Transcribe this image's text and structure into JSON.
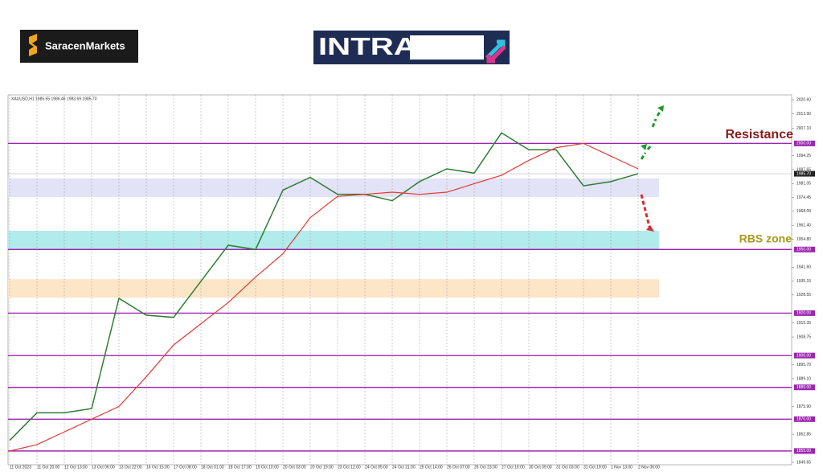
{
  "header": {
    "brand": "SaracenMarkets",
    "banner": "INTRADAY"
  },
  "chart_data": {
    "type": "line",
    "title": "XAUUSD,H1  1985.55 1986.46 1983.69 1985.70",
    "categories": [
      "11 Oct 2023",
      "11 Oct 20:00",
      "12 Oct 13:00",
      "13 Oct 06:00",
      "13 Oct 22:00",
      "16 Oct 15:00",
      "17 Oct 08:00",
      "18 Oct 01:00",
      "18 Oct 17:00",
      "19 Oct 10:00",
      "20 Oct 03:00",
      "20 Oct 19:00",
      "23 Oct 12:00",
      "24 Oct 05:00",
      "24 Oct 21:00",
      "25 Oct 14:00",
      "26 Oct 07:00",
      "26 Oct 23:00",
      "27 Oct 16:00",
      "30 Oct 09:00",
      "31 Oct 03:00",
      "31 Oct 19:00",
      "1 Nov 13:00",
      "2 Nov 06:00"
    ],
    "series": [
      {
        "color": "#2e7d32",
        "values": [
          1860,
          1873,
          1873,
          1875,
          1927,
          1919,
          1918,
          1935,
          1952,
          1950,
          1978,
          1984,
          1976,
          1976,
          1973,
          1982,
          1988,
          1986,
          2005,
          1997,
          1997,
          1980,
          1982,
          1985.7
        ]
      },
      {
        "color": "#e53935",
        "values": [
          1855,
          1858,
          1864,
          1870,
          1876,
          1890,
          1905,
          1915,
          1925,
          1937,
          1948,
          1965,
          1975,
          1976,
          1977,
          1976,
          1977,
          1981,
          1985,
          1992,
          1998,
          2000,
          1994,
          1988
        ]
      }
    ],
    "ylim": [
      1849.65,
      2020.6
    ],
    "yticks": [
      {
        "value": 2020.6,
        "label": "2020.60"
      },
      {
        "value": 2013.9,
        "label": "2013.90"
      },
      {
        "value": 2007.1,
        "label": "2007.10"
      },
      {
        "value": 1994.25,
        "label": "1994.25"
      },
      {
        "value": 1987.65,
        "label": "1987.65"
      },
      {
        "value": 1981.05,
        "label": "1981.05"
      },
      {
        "value": 1974.45,
        "label": "1974.45"
      },
      {
        "value": 1968,
        "label": "1968.00"
      },
      {
        "value": 1961.4,
        "label": "1961.40"
      },
      {
        "value": 1954.8,
        "label": "1954.80"
      },
      {
        "value": 1941.6,
        "label": "1941.60"
      },
      {
        "value": 1935.15,
        "label": "1935.15"
      },
      {
        "value": 1928.55,
        "label": "1928.55"
      },
      {
        "value": 1915.35,
        "label": "1915.35"
      },
      {
        "value": 1908.75,
        "label": "1908.75"
      },
      {
        "value": 1895.7,
        "label": "1895.70"
      },
      {
        "value": 1889.1,
        "label": "1889.10"
      },
      {
        "value": 1875.9,
        "label": "1875.90"
      },
      {
        "value": 1862.85,
        "label": "1862.85"
      },
      {
        "value": 1849.65,
        "label": "1849.65"
      }
    ],
    "levels": [
      {
        "value": 2000,
        "label": "2000.00"
      },
      {
        "value": 1950,
        "label": "1950.00"
      },
      {
        "value": 1920,
        "label": "1920.00"
      },
      {
        "value": 1900,
        "label": "1900.00"
      },
      {
        "value": 1885,
        "label": "1885.00"
      },
      {
        "value": 1870,
        "label": "1870.00"
      },
      {
        "value": 1855,
        "label": "1855.00"
      }
    ],
    "level_color": "#9c27b0",
    "zones": [
      {
        "range": [
          1974.7,
          1983.5
        ],
        "color": "#e3e3f7"
      },
      {
        "range": [
          1950,
          1958.8
        ],
        "color": "#b2ebeb"
      },
      {
        "range": [
          1927.3,
          1936
        ],
        "color": "#fde5c8"
      }
    ],
    "last_price": {
      "value": 1985.7,
      "label": "1985.70"
    },
    "annotations": [
      "Resistance",
      "RBS zone"
    ],
    "grid": true
  }
}
